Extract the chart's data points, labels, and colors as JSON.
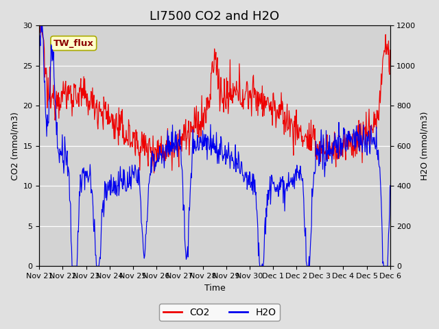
{
  "title": "LI7500 CO2 and H2O",
  "xlabel": "Time",
  "ylabel_left": "CO2 (mmol/m3)",
  "ylabel_right": "H2O (mmol/m3)",
  "ylim_left": [
    0,
    30
  ],
  "ylim_right": [
    0,
    1200
  ],
  "yticks_left": [
    0,
    5,
    10,
    15,
    20,
    25,
    30
  ],
  "yticks_right": [
    0,
    200,
    400,
    600,
    800,
    1000,
    1200
  ],
  "xtick_labels": [
    "Nov 21",
    "Nov 22",
    "Nov 23",
    "Nov 24",
    "Nov 25",
    "Nov 26",
    "Nov 27",
    "Nov 28",
    "Nov 29",
    "Nov 30",
    "Dec 1",
    "Dec 2",
    "Dec 3",
    "Dec 4",
    "Dec 5",
    "Dec 6"
  ],
  "co2_color": "#EE0000",
  "h2o_color": "#0000EE",
  "fig_bg_color": "#E0E0E0",
  "plot_bg_color": "#D3D3D3",
  "annotation_text": "TW_flux",
  "annotation_facecolor": "#FFFFCC",
  "annotation_edgecolor": "#AAAA00",
  "legend_co2": "CO2",
  "legend_h2o": "H2O",
  "title_fontsize": 13,
  "axis_label_fontsize": 9,
  "tick_fontsize": 8,
  "legend_fontsize": 10
}
